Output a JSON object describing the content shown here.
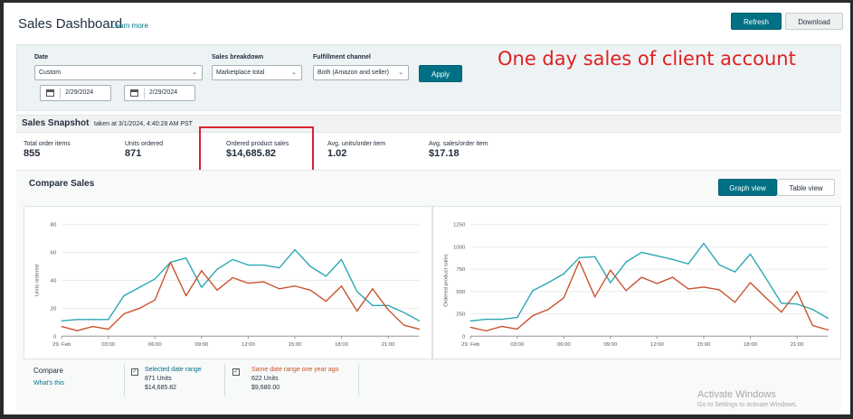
{
  "header": {
    "title": "Sales Dashboard",
    "learn_more": "Learn more",
    "refresh": "Refresh",
    "download": "Download"
  },
  "filters": {
    "date_label": "Date",
    "date_value": "Custom",
    "start_date": "2/29/2024",
    "end_date": "2/29/2024",
    "breakdown_label": "Sales breakdown",
    "breakdown_value": "Marketplace total",
    "fulfillment_label": "Fulfillment channel",
    "fulfillment_value": "Both (Amazon and seller)",
    "apply": "Apply"
  },
  "annotation": "One day sales of client account",
  "snapshot": {
    "title": "Sales Snapshot",
    "taken_at": "taken at 3/1/2024, 4:40:28 AM PST",
    "metrics": [
      {
        "label": "Total order items",
        "value": "855"
      },
      {
        "label": "Units ordered",
        "value": "871"
      },
      {
        "label": "Ordered product sales",
        "value": "$14,685.82"
      },
      {
        "label": "Avg. units/order item",
        "value": "1.02"
      },
      {
        "label": "Avg. sales/order item",
        "value": "$17.18"
      }
    ]
  },
  "compare": {
    "title": "Compare Sales",
    "graph_view": "Graph view",
    "table_view": "Table view",
    "compare_label": "Compare",
    "whats_this": "What's this",
    "selected": {
      "label": "Selected date range",
      "units": "871 Units",
      "sales": "$14,685.82"
    },
    "last_year": {
      "label": "Same date range one year ago",
      "units": "622 Units",
      "sales": "$9,680.00"
    }
  },
  "colors": {
    "selected_series": "#2ba6b4",
    "last_year_series": "#c8532d",
    "accent": "#007185"
  },
  "chart_data": [
    {
      "type": "line",
      "ylabel": "Units ordered",
      "ylim": [
        0,
        80
      ],
      "yticks": [
        0,
        20,
        40,
        60,
        80
      ],
      "x": [
        0,
        1,
        2,
        3,
        4,
        5,
        6,
        7,
        8,
        9,
        10,
        11,
        12,
        13,
        14,
        15,
        16,
        17,
        18,
        19,
        20,
        21,
        22,
        23
      ],
      "xticks": [
        {
          "x": 0,
          "label": "29. Feb"
        },
        {
          "x": 3,
          "label": "03:00"
        },
        {
          "x": 6,
          "label": "06:00"
        },
        {
          "x": 9,
          "label": "09:00"
        },
        {
          "x": 12,
          "label": "12:00"
        },
        {
          "x": 15,
          "label": "15:00"
        },
        {
          "x": 18,
          "label": "18:00"
        },
        {
          "x": 21,
          "label": "21:00"
        }
      ],
      "series": [
        {
          "values": [
            11,
            12,
            12,
            12,
            29,
            35,
            41,
            53,
            56,
            35,
            48,
            55,
            51,
            51,
            49,
            62,
            50,
            43,
            55,
            32,
            22,
            22,
            17,
            11
          ]
        },
        {
          "values": [
            7,
            4,
            7,
            5,
            16,
            20,
            26,
            53,
            29,
            47,
            33,
            42,
            38,
            39,
            34,
            36,
            33,
            25,
            36,
            18,
            34,
            19,
            8,
            5
          ]
        }
      ]
    },
    {
      "type": "line",
      "ylabel": "Ordered product sales",
      "ylim": [
        0,
        1250
      ],
      "yticks": [
        0,
        250,
        500,
        750,
        1000,
        1250
      ],
      "x": [
        0,
        1,
        2,
        3,
        4,
        5,
        6,
        7,
        8,
        9,
        10,
        11,
        12,
        13,
        14,
        15,
        16,
        17,
        18,
        19,
        20,
        21,
        22,
        23
      ],
      "xticks": [
        {
          "x": 0,
          "label": "29. Feb"
        },
        {
          "x": 3,
          "label": "03:00"
        },
        {
          "x": 6,
          "label": "06:00"
        },
        {
          "x": 9,
          "label": "09:00"
        },
        {
          "x": 12,
          "label": "12:00"
        },
        {
          "x": 15,
          "label": "15:00"
        },
        {
          "x": 18,
          "label": "18:00"
        },
        {
          "x": 21,
          "label": "21:00"
        }
      ],
      "series": [
        {
          "values": [
            170,
            190,
            190,
            210,
            510,
            600,
            700,
            880,
            890,
            600,
            830,
            940,
            900,
            860,
            810,
            1040,
            800,
            720,
            920,
            650,
            370,
            360,
            300,
            200
          ]
        },
        {
          "values": [
            100,
            60,
            110,
            80,
            230,
            300,
            430,
            840,
            440,
            740,
            510,
            660,
            590,
            660,
            530,
            550,
            520,
            380,
            600,
            430,
            270,
            500,
            120,
            70
          ]
        }
      ]
    }
  ]
}
